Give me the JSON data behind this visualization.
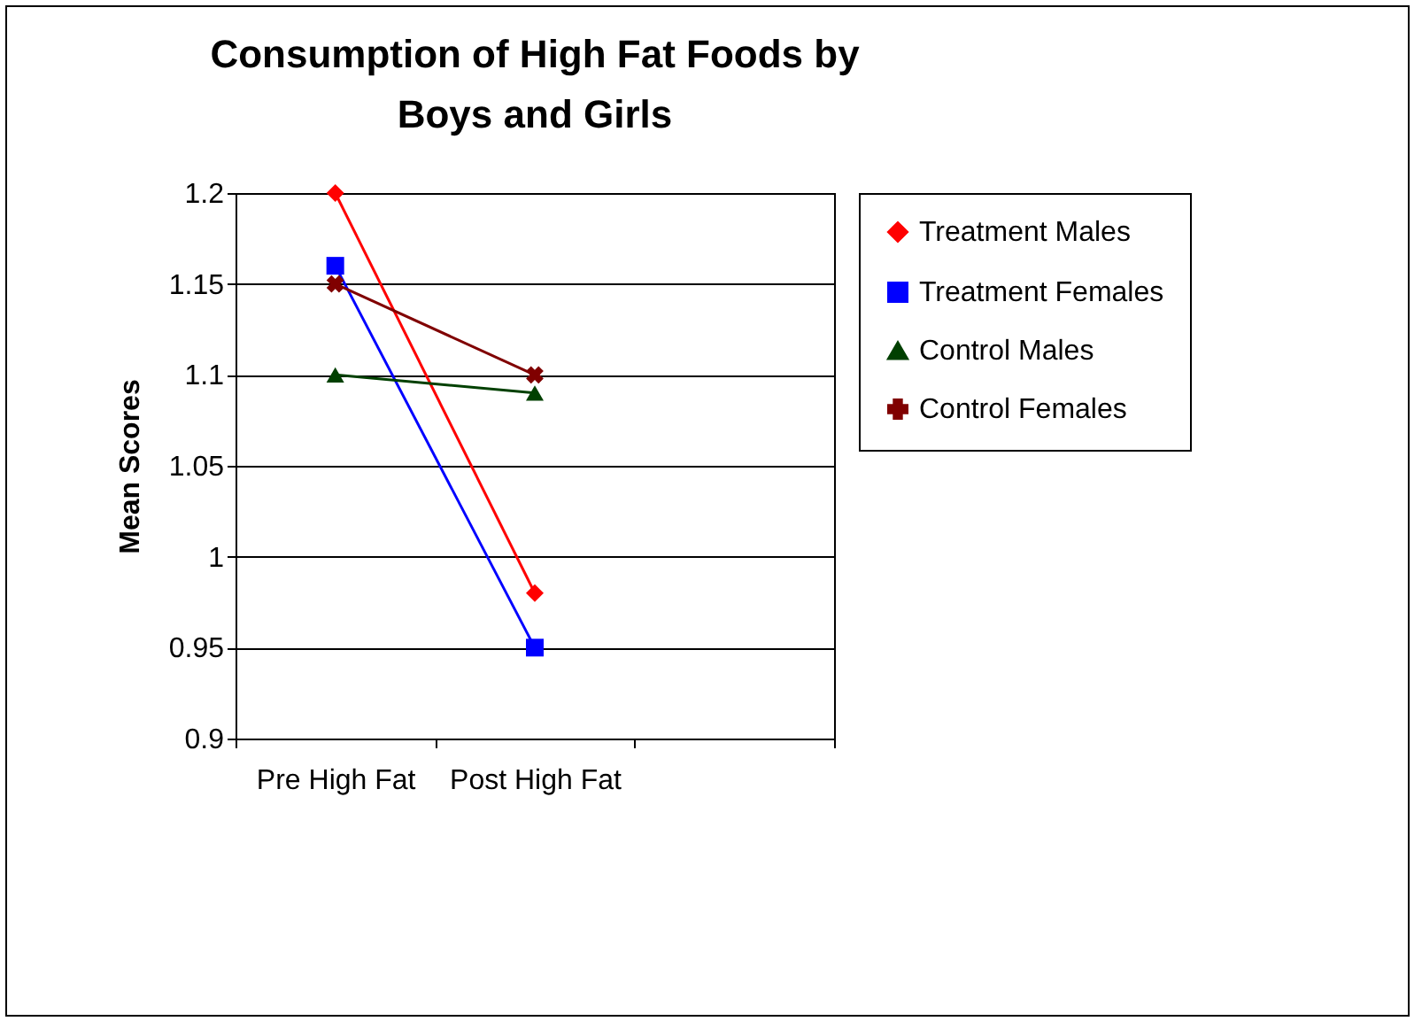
{
  "chart_data": {
    "type": "line",
    "title": "Consumption of High Fat Foods by Boys and Girls",
    "ylabel": "Mean Scores",
    "categories": [
      "Pre High Fat",
      "Post High Fat",
      null
    ],
    "series": [
      {
        "name": "Treatment Males",
        "color": "#ff0000",
        "marker": "diamond",
        "values": [
          1.2,
          0.98,
          null
        ]
      },
      {
        "name": "Treatment Females",
        "color": "#0000ff",
        "marker": "square",
        "values": [
          1.16,
          0.95,
          null
        ]
      },
      {
        "name": "Control Males",
        "color": "#004000",
        "marker": "triangle",
        "values": [
          1.1,
          1.09,
          null
        ]
      },
      {
        "name": "Control Females",
        "color": "#800000",
        "marker": "cross",
        "values": [
          1.15,
          1.1,
          null
        ]
      }
    ],
    "ylim": [
      0.9,
      1.2
    ],
    "yticks": [
      0.9,
      0.95,
      1,
      1.05,
      1.1,
      1.15,
      1.2
    ],
    "grid": "y",
    "legend": "right"
  }
}
